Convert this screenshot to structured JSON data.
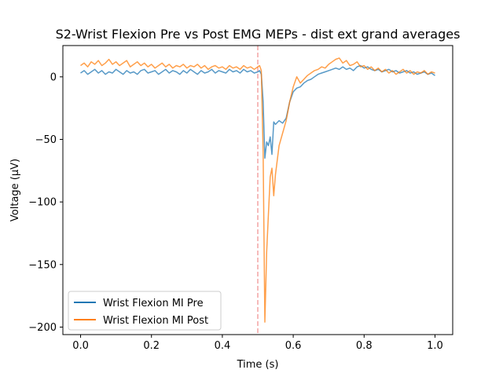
{
  "chart_data": {
    "type": "line",
    "title": "S2-Wrist Flexion Pre vs Post EMG MEPs - dist ext grand averages",
    "xlabel": "Time (s)",
    "ylabel": "Voltage (µV)",
    "xlim": [
      -0.05,
      1.05
    ],
    "ylim": [
      -206,
      25
    ],
    "xticks": [
      0.0,
      0.2,
      0.4,
      0.6,
      0.8,
      1.0
    ],
    "xtick_labels": [
      "0.0",
      "0.2",
      "0.4",
      "0.6",
      "0.8",
      "1.0"
    ],
    "yticks": [
      -200,
      -150,
      -100,
      -50,
      0
    ],
    "ytick_labels": [
      "−200",
      "−150",
      "−100",
      "−50",
      "0"
    ],
    "grid": false,
    "legend_position": "lower-left",
    "vline": {
      "x": 0.5,
      "color": "#f4a3a3",
      "style": "dashed"
    },
    "series": [
      {
        "name": "Wrist Flexion MI Pre",
        "color": "#1f77b4",
        "points": [
          [
            0.0,
            3
          ],
          [
            0.01,
            5
          ],
          [
            0.02,
            2
          ],
          [
            0.03,
            4
          ],
          [
            0.04,
            6
          ],
          [
            0.05,
            3
          ],
          [
            0.06,
            5
          ],
          [
            0.07,
            2
          ],
          [
            0.08,
            4
          ],
          [
            0.09,
            3
          ],
          [
            0.1,
            6
          ],
          [
            0.11,
            4
          ],
          [
            0.12,
            2
          ],
          [
            0.13,
            5
          ],
          [
            0.14,
            3
          ],
          [
            0.15,
            4
          ],
          [
            0.16,
            2
          ],
          [
            0.17,
            5
          ],
          [
            0.18,
            6
          ],
          [
            0.19,
            3
          ],
          [
            0.2,
            4
          ],
          [
            0.21,
            5
          ],
          [
            0.22,
            2
          ],
          [
            0.23,
            4
          ],
          [
            0.24,
            6
          ],
          [
            0.25,
            3
          ],
          [
            0.26,
            5
          ],
          [
            0.27,
            4
          ],
          [
            0.28,
            2
          ],
          [
            0.29,
            5
          ],
          [
            0.3,
            3
          ],
          [
            0.31,
            6
          ],
          [
            0.32,
            4
          ],
          [
            0.33,
            2
          ],
          [
            0.34,
            5
          ],
          [
            0.35,
            3
          ],
          [
            0.36,
            4
          ],
          [
            0.37,
            6
          ],
          [
            0.38,
            3
          ],
          [
            0.39,
            5
          ],
          [
            0.4,
            4
          ],
          [
            0.41,
            3
          ],
          [
            0.42,
            6
          ],
          [
            0.43,
            4
          ],
          [
            0.44,
            5
          ],
          [
            0.45,
            3
          ],
          [
            0.46,
            6
          ],
          [
            0.47,
            4
          ],
          [
            0.48,
            5
          ],
          [
            0.49,
            3
          ],
          [
            0.5,
            4
          ],
          [
            0.505,
            5
          ],
          [
            0.51,
            2
          ],
          [
            0.515,
            -20
          ],
          [
            0.52,
            -65
          ],
          [
            0.525,
            -52
          ],
          [
            0.53,
            -55
          ],
          [
            0.535,
            -48
          ],
          [
            0.54,
            -62
          ],
          [
            0.545,
            -36
          ],
          [
            0.55,
            -38
          ],
          [
            0.56,
            -35
          ],
          [
            0.57,
            -37
          ],
          [
            0.58,
            -33
          ],
          [
            0.59,
            -20
          ],
          [
            0.6,
            -12
          ],
          [
            0.61,
            -9
          ],
          [
            0.62,
            -8
          ],
          [
            0.63,
            -5
          ],
          [
            0.64,
            -3
          ],
          [
            0.65,
            -2
          ],
          [
            0.66,
            0
          ],
          [
            0.67,
            2
          ],
          [
            0.68,
            3
          ],
          [
            0.69,
            4
          ],
          [
            0.7,
            5
          ],
          [
            0.71,
            6
          ],
          [
            0.72,
            7
          ],
          [
            0.73,
            6
          ],
          [
            0.74,
            8
          ],
          [
            0.75,
            6
          ],
          [
            0.76,
            7
          ],
          [
            0.77,
            5
          ],
          [
            0.78,
            8
          ],
          [
            0.79,
            9
          ],
          [
            0.8,
            7
          ],
          [
            0.81,
            8
          ],
          [
            0.82,
            6
          ],
          [
            0.83,
            5
          ],
          [
            0.84,
            6
          ],
          [
            0.85,
            4
          ],
          [
            0.86,
            5
          ],
          [
            0.87,
            6
          ],
          [
            0.88,
            4
          ],
          [
            0.89,
            5
          ],
          [
            0.9,
            3
          ],
          [
            0.91,
            4
          ],
          [
            0.92,
            5
          ],
          [
            0.93,
            3
          ],
          [
            0.94,
            4
          ],
          [
            0.95,
            2
          ],
          [
            0.96,
            3
          ],
          [
            0.97,
            4
          ],
          [
            0.98,
            2
          ],
          [
            0.99,
            3
          ],
          [
            1.0,
            1
          ]
        ]
      },
      {
        "name": "Wrist Flexion MI Post",
        "color": "#ff7f0e",
        "points": [
          [
            0.0,
            9
          ],
          [
            0.01,
            11
          ],
          [
            0.02,
            8
          ],
          [
            0.03,
            12
          ],
          [
            0.04,
            10
          ],
          [
            0.05,
            13
          ],
          [
            0.06,
            9
          ],
          [
            0.07,
            11
          ],
          [
            0.08,
            14
          ],
          [
            0.09,
            10
          ],
          [
            0.1,
            12
          ],
          [
            0.11,
            9
          ],
          [
            0.12,
            11
          ],
          [
            0.13,
            13
          ],
          [
            0.14,
            8
          ],
          [
            0.15,
            10
          ],
          [
            0.16,
            12
          ],
          [
            0.17,
            9
          ],
          [
            0.18,
            11
          ],
          [
            0.19,
            8
          ],
          [
            0.2,
            10
          ],
          [
            0.21,
            7
          ],
          [
            0.22,
            9
          ],
          [
            0.23,
            11
          ],
          [
            0.24,
            8
          ],
          [
            0.25,
            10
          ],
          [
            0.26,
            7
          ],
          [
            0.27,
            9
          ],
          [
            0.28,
            8
          ],
          [
            0.29,
            10
          ],
          [
            0.3,
            7
          ],
          [
            0.31,
            9
          ],
          [
            0.32,
            8
          ],
          [
            0.33,
            10
          ],
          [
            0.34,
            7
          ],
          [
            0.35,
            9
          ],
          [
            0.36,
            6
          ],
          [
            0.37,
            8
          ],
          [
            0.38,
            9
          ],
          [
            0.39,
            7
          ],
          [
            0.4,
            8
          ],
          [
            0.41,
            6
          ],
          [
            0.42,
            9
          ],
          [
            0.43,
            7
          ],
          [
            0.44,
            8
          ],
          [
            0.45,
            6
          ],
          [
            0.46,
            9
          ],
          [
            0.47,
            7
          ],
          [
            0.48,
            8
          ],
          [
            0.49,
            6
          ],
          [
            0.5,
            8
          ],
          [
            0.505,
            9
          ],
          [
            0.51,
            5
          ],
          [
            0.515,
            -60
          ],
          [
            0.52,
            -196
          ],
          [
            0.525,
            -140
          ],
          [
            0.53,
            -110
          ],
          [
            0.535,
            -80
          ],
          [
            0.54,
            -73
          ],
          [
            0.545,
            -95
          ],
          [
            0.55,
            -78
          ],
          [
            0.56,
            -55
          ],
          [
            0.57,
            -45
          ],
          [
            0.58,
            -35
          ],
          [
            0.59,
            -20
          ],
          [
            0.6,
            -8
          ],
          [
            0.61,
            0
          ],
          [
            0.62,
            -5
          ],
          [
            0.63,
            -2
          ],
          [
            0.64,
            1
          ],
          [
            0.65,
            3
          ],
          [
            0.66,
            5
          ],
          [
            0.67,
            6
          ],
          [
            0.68,
            8
          ],
          [
            0.69,
            7
          ],
          [
            0.7,
            10
          ],
          [
            0.71,
            12
          ],
          [
            0.72,
            14
          ],
          [
            0.73,
            15
          ],
          [
            0.74,
            11
          ],
          [
            0.75,
            13
          ],
          [
            0.76,
            9
          ],
          [
            0.77,
            10
          ],
          [
            0.78,
            12
          ],
          [
            0.79,
            8
          ],
          [
            0.8,
            9
          ],
          [
            0.81,
            6
          ],
          [
            0.82,
            8
          ],
          [
            0.83,
            5
          ],
          [
            0.84,
            7
          ],
          [
            0.85,
            4
          ],
          [
            0.86,
            6
          ],
          [
            0.87,
            3
          ],
          [
            0.88,
            5
          ],
          [
            0.89,
            2
          ],
          [
            0.9,
            4
          ],
          [
            0.91,
            6
          ],
          [
            0.92,
            3
          ],
          [
            0.93,
            5
          ],
          [
            0.94,
            2
          ],
          [
            0.95,
            4
          ],
          [
            0.96,
            3
          ],
          [
            0.97,
            5
          ],
          [
            0.98,
            2
          ],
          [
            0.99,
            4
          ],
          [
            1.0,
            3
          ]
        ]
      }
    ]
  }
}
